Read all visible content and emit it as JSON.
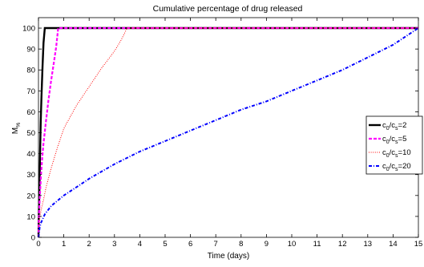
{
  "chart_data": {
    "type": "line",
    "title": "Cumulative percentage of drug released",
    "xlabel": "Time (days)",
    "ylabel_main": "M",
    "ylabel_sub": "%",
    "xlim": [
      0,
      15
    ],
    "ylim": [
      0,
      105
    ],
    "xticks": [
      0,
      1,
      2,
      3,
      4,
      5,
      6,
      7,
      8,
      9,
      10,
      11,
      12,
      13,
      14,
      15
    ],
    "yticks": [
      0,
      10,
      20,
      30,
      40,
      50,
      60,
      70,
      80,
      90,
      100
    ],
    "grid": false,
    "legend_position": "right",
    "series": [
      {
        "name": "c0/cs=2",
        "legend": {
          "c": "c",
          "sub1": "0",
          "slash": "/c",
          "sub2": "s",
          "eq": "=2"
        },
        "color": "#000000",
        "style": "solid",
        "x": [
          0,
          0.01,
          0.02,
          0.04,
          0.06,
          0.09,
          0.12,
          0.16,
          0.2,
          0.25,
          15
        ],
        "y": [
          0,
          9,
          14,
          25,
          38,
          55,
          68,
          82,
          93,
          100,
          100
        ]
      },
      {
        "name": "c0/cs=5",
        "legend": {
          "c": "c",
          "sub1": "0",
          "slash": "/c",
          "sub2": "s",
          "eq": "=5"
        },
        "color": "#ff00ff",
        "style": "dashed",
        "x": [
          0,
          0.02,
          0.05,
          0.1,
          0.15,
          0.2,
          0.3,
          0.4,
          0.5,
          0.6,
          0.7,
          0.78,
          15
        ],
        "y": [
          0,
          10,
          19,
          30,
          38,
          45,
          56,
          66,
          75,
          83,
          91,
          100,
          100
        ]
      },
      {
        "name": "c0/cs=10",
        "legend": {
          "c": "c",
          "sub1": "0",
          "slash": "/c",
          "sub2": "s",
          "eq": "=10"
        },
        "color": "#ff0000",
        "style": "dotted",
        "x": [
          0,
          0.05,
          0.1,
          0.2,
          0.3,
          0.5,
          0.75,
          1,
          1.5,
          2,
          2.5,
          3,
          3.25,
          3.5,
          15
        ],
        "y": [
          0,
          9,
          13,
          18,
          24,
          33,
          43,
          52,
          63,
          72,
          81,
          89,
          94,
          100,
          100
        ]
      },
      {
        "name": "c0/cs=20",
        "legend": {
          "c": "c",
          "sub1": "0",
          "slash": "/c",
          "sub2": "s",
          "eq": "=20"
        },
        "color": "#0000ff",
        "style": "dashdot",
        "x": [
          0,
          0.05,
          0.1,
          0.25,
          0.5,
          1,
          1.5,
          2,
          3,
          4,
          5,
          6,
          7,
          8,
          9,
          10,
          11,
          12,
          13,
          14,
          15
        ],
        "y": [
          0,
          5,
          7,
          11,
          15,
          20,
          24,
          28,
          35,
          41,
          46,
          51,
          56,
          61,
          65,
          70,
          75,
          80,
          86,
          92,
          100
        ]
      }
    ]
  }
}
